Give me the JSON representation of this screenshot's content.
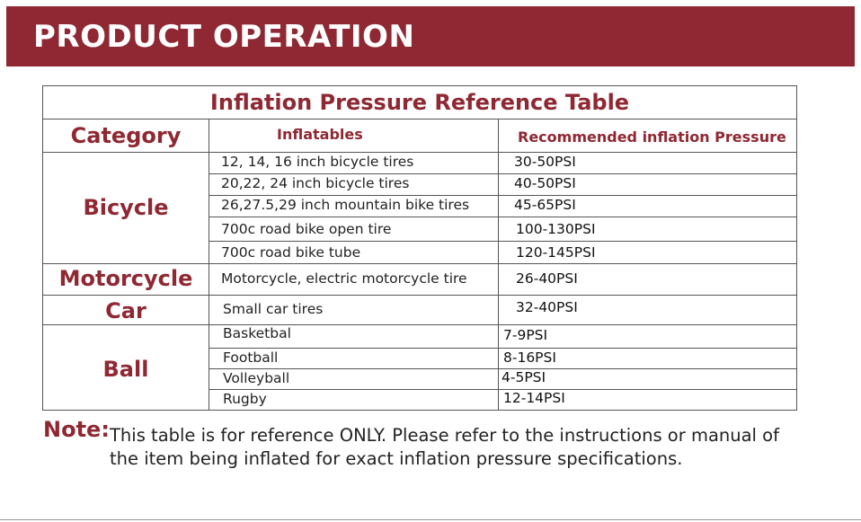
{
  "banner": {
    "title": "PRODUCT OPERATION"
  },
  "table": {
    "caption": "Inflation Pressure Reference Table",
    "headers": {
      "category": "Category",
      "inflatables": "Inflatables",
      "pressure": "Recommended inflation Pressure"
    },
    "groups": [
      {
        "category": "Bicycle",
        "items": [
          {
            "item": "12, 14, 16 inch bicycle tires",
            "pressure": "30-50PSI"
          },
          {
            "item": "20,22, 24 inch bicycle tires",
            "pressure": "40-50PSI"
          },
          {
            "item": "26,27.5,29 inch mountain bike tires",
            "pressure": "45-65PSI"
          },
          {
            "item": "700c road bike open tire",
            "pressure": "100-130PSI"
          },
          {
            "item": "700c road bike tube",
            "pressure": "120-145PSI"
          }
        ]
      },
      {
        "category": "Motorcycle",
        "items": [
          {
            "item": "Motorcycle, electric motorcycle tire",
            "pressure": "26-40PSI"
          }
        ]
      },
      {
        "category": "Car",
        "items": [
          {
            "item": "Small car tires",
            "pressure": "32-40PSI"
          }
        ]
      },
      {
        "category": "Ball",
        "items": [
          {
            "item": "Basketbal",
            "pressure": "7-9PSI"
          },
          {
            "item": "Football",
            "pressure": "8-16PSI"
          },
          {
            "item": "Volleyball",
            "pressure": "4-5PSI"
          },
          {
            "item": "Rugby",
            "pressure": "12-14PSI"
          }
        ]
      }
    ]
  },
  "note": {
    "label": "Note:",
    "text": "This table is for reference ONLY. Please refer to the instructions or manual of the item being inflated for exact inflation pressure specifications."
  },
  "colors": {
    "accent": "#8f2832",
    "banner_text": "#ffffff",
    "border": "#555555"
  }
}
